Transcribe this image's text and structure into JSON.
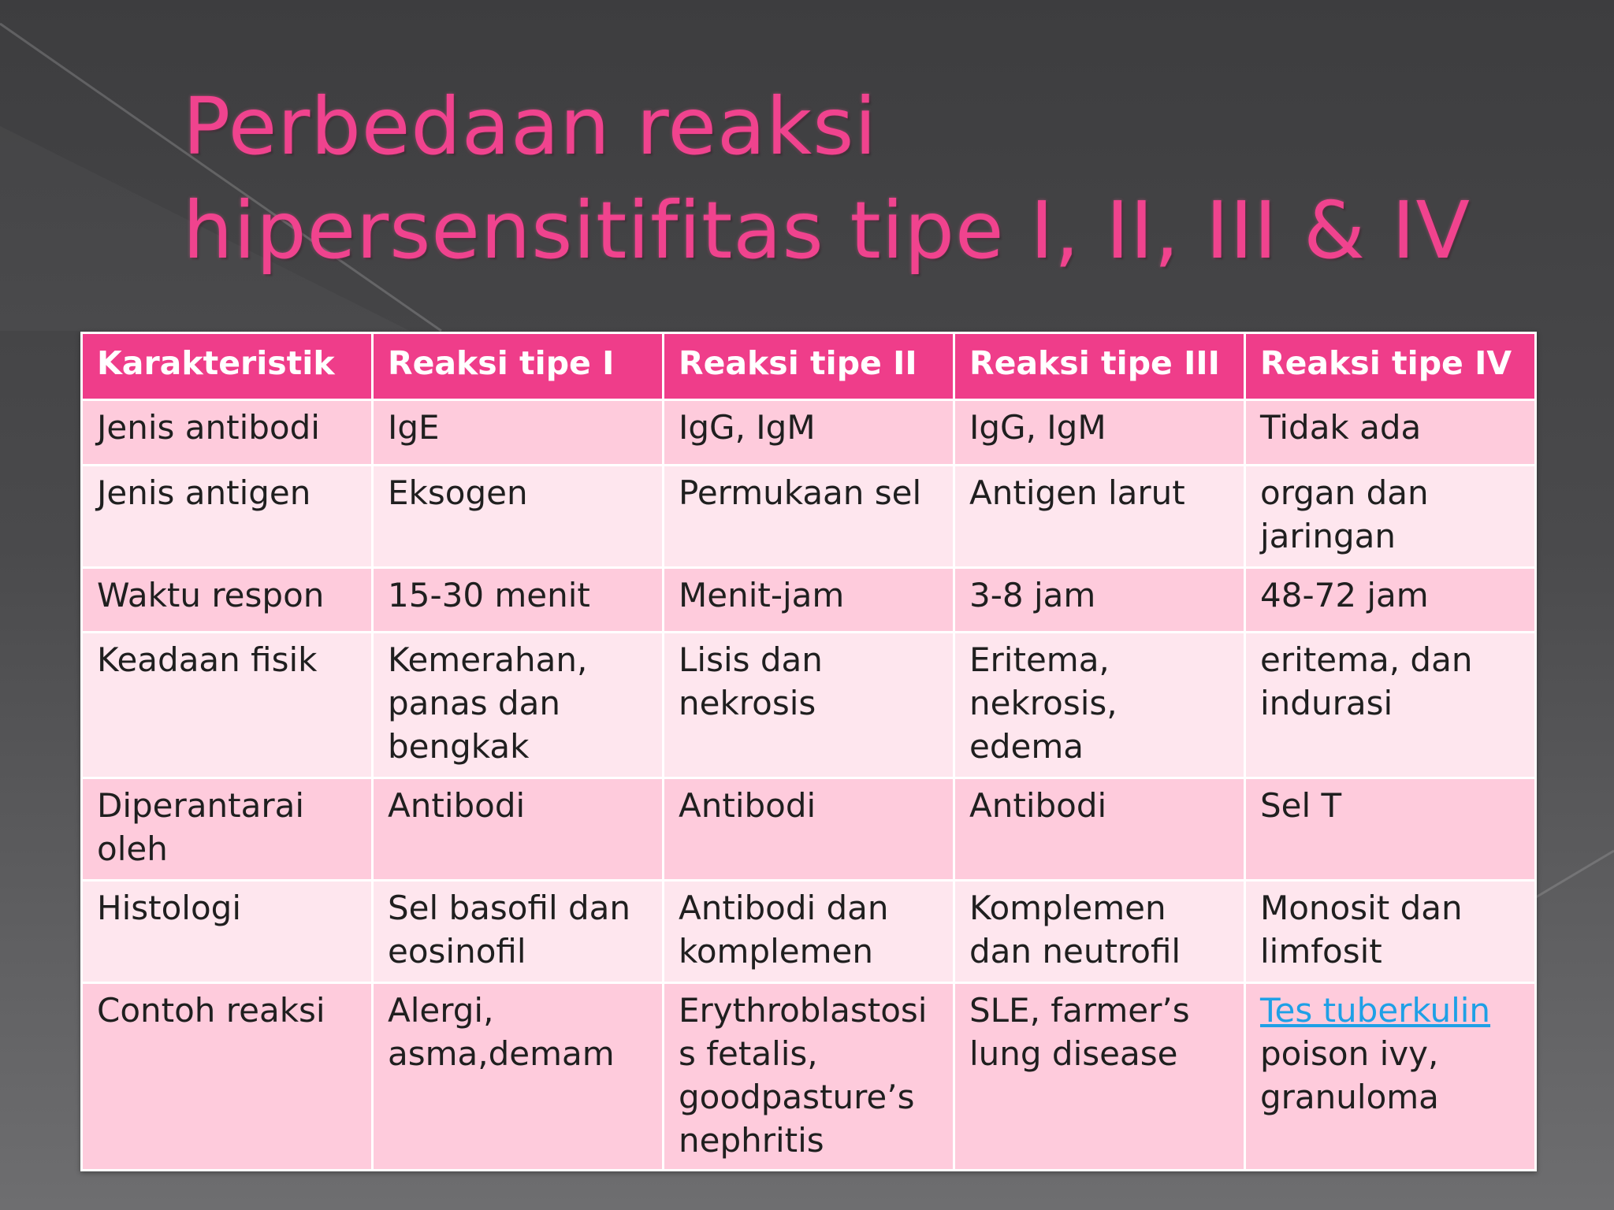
{
  "title": {
    "line1": "Perbedaan reaksi",
    "line2": "hipersensitifitas tipe I, II, III & IV"
  },
  "table": {
    "headers": [
      "Karakteristik",
      "Reaksi tipe I",
      "Reaksi tipe II",
      "Reaksi tipe III",
      "Reaksi tipe IV"
    ],
    "rows": [
      [
        "Jenis antibodi",
        "IgE",
        "IgG, IgM",
        "IgG, IgM",
        "Tidak ada"
      ],
      [
        "Jenis antigen",
        "Eksogen",
        "Permukaan sel",
        "Antigen larut",
        "organ dan\njaringan"
      ],
      [
        "Waktu respon",
        "15-30 menit",
        "Menit-jam",
        "3-8 jam",
        "48-72 jam"
      ],
      [
        "Keadaan fisik",
        "Kemerahan,\npanas dan\nbengkak",
        "Lisis dan\nnekrosis",
        "Eritema,\nnekrosis,\nedema",
        "eritema, dan\nindurasi"
      ],
      [
        "Diperantarai\noleh",
        "Antibodi",
        "Antibodi",
        "Antibodi",
        "Sel T"
      ],
      [
        "Histologi",
        "Sel basofil dan\neosinofil",
        "Antibodi dan\nkomplemen",
        "Komplemen\ndan neutrofil",
        "Monosit dan\nlimfosit"
      ],
      [
        "Contoh reaksi",
        "Alergi,\nasma,demam",
        "Erythroblastosi\ns fetalis,\ngoodpasture’s\nnephritis",
        "SLE, farmer’s\nlung disease",
        ""
      ]
    ],
    "last_cell": {
      "link_text": "Tes tuberkulin",
      "rest_text": "poison ivy,\ngranuloma"
    }
  },
  "colors": {
    "accent": "#ef3d8a",
    "title": "#f0438e",
    "row_odd": "#fecbdc",
    "row_even": "#fee6ee",
    "link": "#1fa0e6"
  }
}
